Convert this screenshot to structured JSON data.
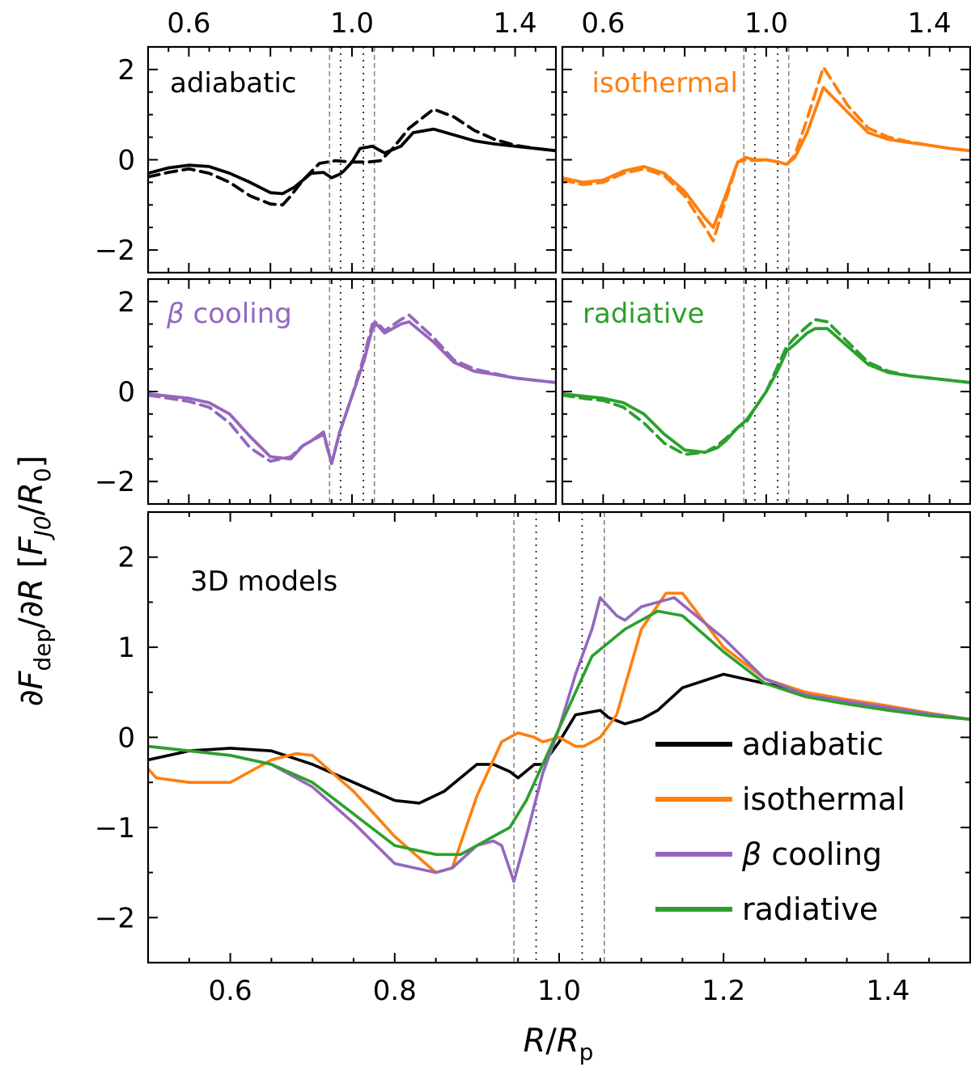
{
  "figure": {
    "ylabel": "∂F_dep/∂R [F_J0/R_0]",
    "ylabel_parts": {
      "d": "∂",
      "F": "F",
      "sub_dep": "dep",
      "mid": "/∂",
      "R": "R",
      "open": " [",
      "FJ": "F",
      "sub_J0": "J0",
      "slash": "/",
      "R0": "R",
      "sub_0": "0",
      "close": "]"
    },
    "xlabel": "R/R_p",
    "xlabel_parts": {
      "R": "R",
      "slash": "/",
      "Rp": "R",
      "sub_p": "p"
    },
    "colors": {
      "adiabatic": "#000000",
      "isothermal": "#ff7f0e",
      "beta": "#9467bd",
      "radiative": "#2ca02c"
    }
  },
  "chart_data": [
    {
      "type": "line",
      "panel": "adiabatic",
      "label": "adiabatic",
      "color": "#000000",
      "xlim": [
        0.5,
        1.5
      ],
      "ylim": [
        -2.5,
        2.5
      ],
      "xticks": [
        "0.6",
        "1.0",
        "1.4"
      ],
      "yticks": [
        "−2",
        "0",
        "2"
      ],
      "series": [
        {
          "style": "solid",
          "x": [
            0.5,
            0.55,
            0.6,
            0.65,
            0.7,
            0.75,
            0.8,
            0.83,
            0.86,
            0.9,
            0.93,
            0.95,
            0.97,
            0.98,
            1.0,
            1.02,
            1.05,
            1.08,
            1.12,
            1.15,
            1.2,
            1.25,
            1.3,
            1.35,
            1.4,
            1.45,
            1.5
          ],
          "y": [
            -0.3,
            -0.18,
            -0.12,
            -0.15,
            -0.3,
            -0.5,
            -0.73,
            -0.75,
            -0.6,
            -0.3,
            -0.28,
            -0.4,
            -0.32,
            -0.25,
            -0.05,
            0.25,
            0.3,
            0.15,
            0.3,
            0.6,
            0.68,
            0.55,
            0.42,
            0.35,
            0.3,
            0.25,
            0.2
          ]
        },
        {
          "style": "dashed",
          "x": [
            0.5,
            0.55,
            0.6,
            0.65,
            0.7,
            0.75,
            0.8,
            0.83,
            0.85,
            0.88,
            0.92,
            0.96,
            1.0,
            1.04,
            1.07,
            1.1,
            1.14,
            1.2,
            1.25,
            1.3,
            1.35,
            1.4,
            1.45,
            1.5
          ],
          "y": [
            -0.38,
            -0.28,
            -0.2,
            -0.3,
            -0.5,
            -0.8,
            -0.98,
            -1.0,
            -0.8,
            -0.45,
            -0.08,
            -0.02,
            -0.05,
            -0.05,
            -0.02,
            0.25,
            0.7,
            1.12,
            0.95,
            0.65,
            0.45,
            0.32,
            0.25,
            0.2
          ]
        }
      ]
    },
    {
      "type": "line",
      "panel": "isothermal",
      "label": "isothermal",
      "color": "#ff7f0e",
      "xlim": [
        0.5,
        1.5
      ],
      "ylim": [
        -2.5,
        2.5
      ],
      "xticks": [
        "0.6",
        "1.0",
        "1.4"
      ],
      "yticks": [
        "−2",
        "0",
        "2"
      ],
      "series": [
        {
          "style": "solid",
          "x": [
            0.5,
            0.55,
            0.6,
            0.65,
            0.7,
            0.75,
            0.8,
            0.85,
            0.87,
            0.9,
            0.93,
            0.95,
            0.97,
            1.0,
            1.03,
            1.05,
            1.07,
            1.1,
            1.14,
            1.2,
            1.25,
            1.3,
            1.35,
            1.4,
            1.45,
            1.5
          ],
          "y": [
            -0.4,
            -0.5,
            -0.45,
            -0.25,
            -0.15,
            -0.3,
            -0.7,
            -1.3,
            -1.5,
            -0.8,
            -0.05,
            0.05,
            0.0,
            0.0,
            -0.05,
            -0.1,
            0.05,
            0.6,
            1.6,
            1.05,
            0.6,
            0.45,
            0.38,
            0.32,
            0.25,
            0.2
          ]
        },
        {
          "style": "dashed",
          "x": [
            0.5,
            0.55,
            0.6,
            0.65,
            0.7,
            0.75,
            0.8,
            0.85,
            0.87,
            0.9,
            0.93,
            0.95,
            0.97,
            1.0,
            1.03,
            1.05,
            1.07,
            1.1,
            1.14,
            1.2,
            1.25,
            1.3,
            1.35,
            1.4,
            1.45,
            1.5
          ],
          "y": [
            -0.45,
            -0.55,
            -0.5,
            -0.3,
            -0.2,
            -0.35,
            -0.8,
            -1.5,
            -1.8,
            -0.9,
            -0.05,
            0.0,
            -0.02,
            0.0,
            -0.05,
            -0.1,
            0.1,
            0.9,
            2.05,
            1.2,
            0.7,
            0.5,
            0.4,
            0.32,
            0.25,
            0.2
          ]
        }
      ]
    },
    {
      "type": "line",
      "panel": "beta",
      "label": "β cooling",
      "color": "#9467bd",
      "xlim": [
        0.5,
        1.5
      ],
      "ylim": [
        -2.5,
        2.5
      ],
      "xticks": [
        "0.6",
        "1.0",
        "1.4"
      ],
      "yticks": [
        "−2",
        "0",
        "2"
      ],
      "series": [
        {
          "style": "solid",
          "x": [
            0.5,
            0.55,
            0.6,
            0.65,
            0.7,
            0.75,
            0.8,
            0.85,
            0.88,
            0.9,
            0.93,
            0.95,
            0.97,
            1.0,
            1.03,
            1.05,
            1.06,
            1.08,
            1.12,
            1.14,
            1.2,
            1.25,
            1.3,
            1.35,
            1.4,
            1.45,
            1.5
          ],
          "y": [
            -0.05,
            -0.1,
            -0.15,
            -0.25,
            -0.5,
            -1.0,
            -1.45,
            -1.5,
            -1.2,
            -1.1,
            -0.9,
            -1.6,
            -0.9,
            -0.1,
            0.7,
            1.4,
            1.5,
            1.3,
            1.5,
            1.55,
            1.1,
            0.65,
            0.45,
            0.38,
            0.3,
            0.25,
            0.2
          ]
        },
        {
          "style": "dashed",
          "x": [
            0.5,
            0.55,
            0.6,
            0.65,
            0.7,
            0.75,
            0.8,
            0.85,
            0.88,
            0.9,
            0.93,
            0.95,
            0.97,
            1.0,
            1.03,
            1.05,
            1.06,
            1.08,
            1.12,
            1.14,
            1.2,
            1.25,
            1.3,
            1.35,
            1.4,
            1.45,
            1.5
          ],
          "y": [
            -0.08,
            -0.15,
            -0.22,
            -0.35,
            -0.7,
            -1.25,
            -1.55,
            -1.45,
            -1.2,
            -1.1,
            -0.95,
            -1.6,
            -0.9,
            -0.1,
            0.8,
            1.5,
            1.55,
            1.35,
            1.6,
            1.7,
            1.2,
            0.7,
            0.5,
            0.4,
            0.3,
            0.25,
            0.2
          ]
        }
      ]
    },
    {
      "type": "line",
      "panel": "radiative",
      "label": "radiative",
      "color": "#2ca02c",
      "xlim": [
        0.5,
        1.5
      ],
      "ylim": [
        -2.5,
        2.5
      ],
      "xticks": [
        "0.6",
        "1.0",
        "1.4"
      ],
      "yticks": [
        "−2",
        "0",
        "2"
      ],
      "series": [
        {
          "style": "solid",
          "x": [
            0.5,
            0.55,
            0.6,
            0.65,
            0.7,
            0.75,
            0.8,
            0.85,
            0.88,
            0.9,
            0.93,
            0.95,
            0.97,
            1.0,
            1.03,
            1.05,
            1.07,
            1.1,
            1.12,
            1.15,
            1.2,
            1.25,
            1.3,
            1.35,
            1.4,
            1.45,
            1.5
          ],
          "y": [
            -0.05,
            -0.1,
            -0.15,
            -0.25,
            -0.5,
            -0.95,
            -1.3,
            -1.35,
            -1.25,
            -1.1,
            -0.8,
            -0.65,
            -0.4,
            0.0,
            0.5,
            0.9,
            1.05,
            1.3,
            1.4,
            1.4,
            1.0,
            0.6,
            0.42,
            0.35,
            0.3,
            0.25,
            0.2
          ]
        },
        {
          "style": "dashed",
          "x": [
            0.5,
            0.55,
            0.6,
            0.65,
            0.7,
            0.75,
            0.8,
            0.85,
            0.88,
            0.9,
            0.93,
            0.95,
            0.97,
            1.0,
            1.03,
            1.05,
            1.07,
            1.1,
            1.12,
            1.15,
            1.2,
            1.25,
            1.3,
            1.35,
            1.4,
            1.45,
            1.5
          ],
          "y": [
            -0.08,
            -0.15,
            -0.2,
            -0.35,
            -0.7,
            -1.15,
            -1.4,
            -1.35,
            -1.2,
            -1.05,
            -0.8,
            -0.7,
            -0.4,
            0.0,
            0.6,
            1.0,
            1.2,
            1.45,
            1.6,
            1.55,
            1.1,
            0.65,
            0.45,
            0.35,
            0.3,
            0.25,
            0.2
          ]
        }
      ]
    },
    {
      "type": "line",
      "panel": "3d",
      "label": "3D models",
      "xlim": [
        0.5,
        1.5
      ],
      "ylim": [
        -2.5,
        2.5
      ],
      "xticks": [
        "0.6",
        "0.8",
        "1.0",
        "1.2",
        "1.4"
      ],
      "yticks": [
        "−2",
        "−1",
        "0",
        "1",
        "2"
      ],
      "legend": {
        "position": "lower-right"
      },
      "series": [
        {
          "name": "adiabatic",
          "color": "#000000",
          "x": [
            0.5,
            0.55,
            0.6,
            0.65,
            0.7,
            0.75,
            0.8,
            0.83,
            0.86,
            0.9,
            0.92,
            0.94,
            0.95,
            0.97,
            0.98,
            1.0,
            1.02,
            1.05,
            1.06,
            1.08,
            1.1,
            1.12,
            1.15,
            1.2,
            1.25,
            1.3,
            1.35,
            1.4,
            1.45,
            1.5
          ],
          "y": [
            -0.25,
            -0.15,
            -0.12,
            -0.15,
            -0.3,
            -0.5,
            -0.7,
            -0.73,
            -0.6,
            -0.3,
            -0.3,
            -0.38,
            -0.45,
            -0.3,
            -0.3,
            -0.05,
            0.25,
            0.3,
            0.22,
            0.15,
            0.2,
            0.3,
            0.55,
            0.7,
            0.6,
            0.5,
            0.4,
            0.32,
            0.25,
            0.2
          ]
        },
        {
          "name": "isothermal",
          "color": "#ff7f0e",
          "x": [
            0.5,
            0.51,
            0.55,
            0.6,
            0.65,
            0.68,
            0.7,
            0.75,
            0.8,
            0.85,
            0.87,
            0.9,
            0.93,
            0.95,
            0.97,
            0.98,
            1.0,
            1.02,
            1.03,
            1.05,
            1.07,
            1.1,
            1.13,
            1.15,
            1.2,
            1.25,
            1.3,
            1.35,
            1.4,
            1.45,
            1.5
          ],
          "y": [
            -0.35,
            -0.45,
            -0.5,
            -0.5,
            -0.25,
            -0.18,
            -0.2,
            -0.6,
            -1.1,
            -1.5,
            -1.45,
            -0.65,
            -0.05,
            0.05,
            0.0,
            -0.05,
            0.0,
            -0.1,
            -0.1,
            0.0,
            0.25,
            1.2,
            1.6,
            1.6,
            1.0,
            0.65,
            0.5,
            0.42,
            0.35,
            0.27,
            0.2
          ]
        },
        {
          "name": "β cooling",
          "color": "#9467bd",
          "x": [
            0.5,
            0.55,
            0.6,
            0.65,
            0.7,
            0.75,
            0.8,
            0.85,
            0.87,
            0.9,
            0.92,
            0.93,
            0.945,
            0.96,
            0.98,
            1.0,
            1.02,
            1.04,
            1.05,
            1.06,
            1.07,
            1.08,
            1.1,
            1.14,
            1.2,
            1.25,
            1.3,
            1.35,
            1.4,
            1.45,
            1.5
          ],
          "y": [
            -0.1,
            -0.15,
            -0.2,
            -0.3,
            -0.55,
            -0.95,
            -1.4,
            -1.5,
            -1.45,
            -1.2,
            -1.15,
            -1.2,
            -1.6,
            -1.1,
            -0.4,
            0.1,
            0.7,
            1.2,
            1.55,
            1.45,
            1.35,
            1.3,
            1.45,
            1.55,
            1.1,
            0.65,
            0.47,
            0.4,
            0.33,
            0.26,
            0.2
          ]
        },
        {
          "name": "radiative",
          "color": "#2ca02c",
          "x": [
            0.5,
            0.55,
            0.6,
            0.65,
            0.7,
            0.75,
            0.8,
            0.85,
            0.88,
            0.9,
            0.92,
            0.94,
            0.96,
            0.98,
            1.0,
            1.02,
            1.04,
            1.06,
            1.08,
            1.1,
            1.12,
            1.15,
            1.2,
            1.25,
            1.3,
            1.35,
            1.4,
            1.45,
            1.5
          ],
          "y": [
            -0.1,
            -0.15,
            -0.2,
            -0.3,
            -0.5,
            -0.85,
            -1.2,
            -1.3,
            -1.3,
            -1.2,
            -1.1,
            -1.0,
            -0.7,
            -0.3,
            0.1,
            0.5,
            0.9,
            1.05,
            1.2,
            1.3,
            1.4,
            1.35,
            0.95,
            0.6,
            0.45,
            0.37,
            0.3,
            0.24,
            0.2
          ]
        }
      ]
    }
  ]
}
